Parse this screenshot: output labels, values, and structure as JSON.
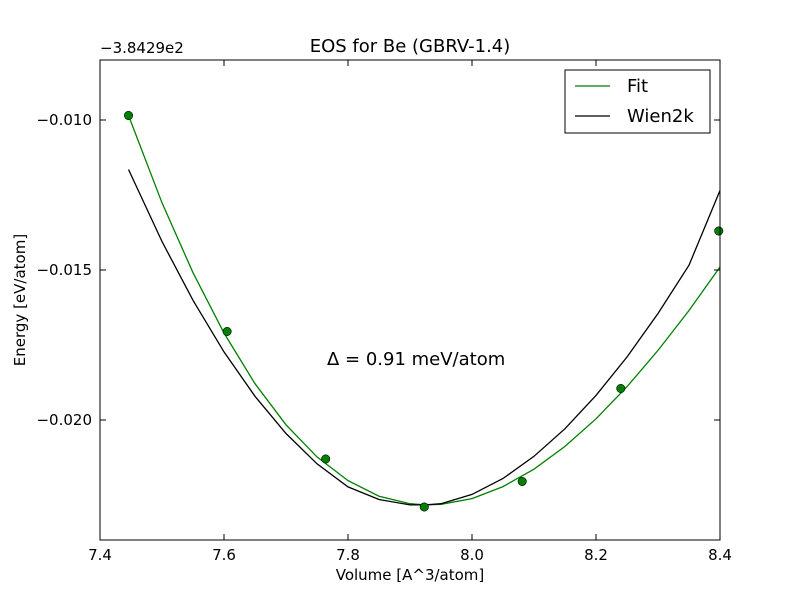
{
  "chart_data": {
    "type": "line",
    "title": "EOS for Be (GBRV-1.4)",
    "xlabel": "Volume [A^3/atom]",
    "ylabel": "Energy [eV/atom]",
    "offset_label": "−3.8429e2",
    "xlim": [
      7.4,
      8.4
    ],
    "ylim": [
      -0.024,
      -0.008
    ],
    "x_ticks": [
      7.4,
      7.6,
      7.8,
      8.0,
      8.2,
      8.4
    ],
    "x_tick_labels": [
      "7.4",
      "7.6",
      "7.8",
      "8.0",
      "8.2",
      "8.4"
    ],
    "y_ticks": [
      -0.01,
      -0.015,
      -0.02
    ],
    "y_tick_labels": [
      "−0.010",
      "−0.015",
      "−0.020"
    ],
    "grid": false,
    "legend_position": "top-right",
    "annotation": "Δ = 0.91 meV/atom",
    "series": [
      {
        "name": "Fit",
        "color": "#008000",
        "style": "line",
        "x": [
          7.446,
          7.5,
          7.55,
          7.6,
          7.65,
          7.7,
          7.75,
          7.8,
          7.85,
          7.9,
          7.925,
          7.95,
          8.0,
          8.05,
          8.1,
          8.15,
          8.2,
          8.25,
          8.3,
          8.35,
          8.4
        ],
        "y": [
          -0.00985,
          -0.01276,
          -0.01509,
          -0.0171,
          -0.01879,
          -0.02016,
          -0.02123,
          -0.02202,
          -0.02254,
          -0.02279,
          -0.02283,
          -0.02281,
          -0.02262,
          -0.02222,
          -0.02164,
          -0.02088,
          -0.01996,
          -0.01889,
          -0.01768,
          -0.01635,
          -0.0149
        ]
      },
      {
        "name": "Wien2k",
        "color": "#000000",
        "style": "line",
        "x": [
          7.446,
          7.5,
          7.55,
          7.6,
          7.65,
          7.7,
          7.75,
          7.8,
          7.85,
          7.9,
          7.925,
          7.95,
          8.0,
          8.05,
          8.1,
          8.15,
          8.2,
          8.25,
          8.3,
          8.35,
          8.4
        ],
        "y": [
          -0.01165,
          -0.01405,
          -0.01601,
          -0.01773,
          -0.01921,
          -0.02045,
          -0.02146,
          -0.02223,
          -0.02265,
          -0.02283,
          -0.02283,
          -0.02279,
          -0.02248,
          -0.02195,
          -0.02121,
          -0.02029,
          -0.01918,
          -0.0179,
          -0.01645,
          -0.01484,
          -0.01235
        ]
      },
      {
        "name": "",
        "color": "#008000",
        "style": "markers",
        "x": [
          7.446,
          7.605,
          7.764,
          7.923,
          8.081,
          8.24,
          8.398
        ],
        "y": [
          -0.00985,
          -0.01705,
          -0.0213,
          -0.0229,
          -0.02205,
          -0.01895,
          -0.0137
        ]
      }
    ]
  }
}
